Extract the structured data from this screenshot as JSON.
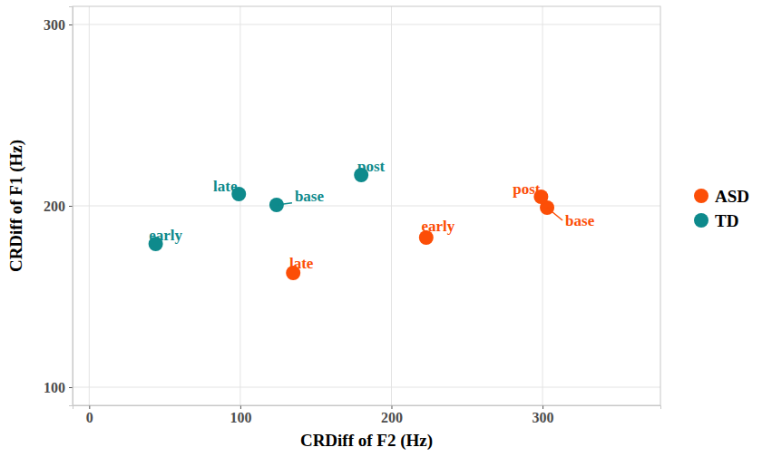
{
  "chart_data": {
    "type": "scatter",
    "x_label": "CRDiff of F2 (Hz)",
    "y_label": "CRDiff of F1 (Hz)",
    "xlim": [
      -11,
      378
    ],
    "ylim": [
      90,
      310
    ],
    "xticks": [
      0,
      100,
      200,
      300
    ],
    "yticks": [
      100,
      200,
      300
    ],
    "grid": true,
    "legend": "right",
    "series": [
      {
        "name": "ASD",
        "color": "#FC4E07",
        "marker": "circle",
        "labels": [
          "base",
          "early",
          "late",
          "post"
        ],
        "x": [
          303,
          223,
          135,
          299
        ],
        "values": [
          199,
          182.5,
          163,
          205
        ]
      },
      {
        "name": "TD",
        "color": "#0E8A8C",
        "marker": "circle",
        "labels": [
          "base",
          "early",
          "late",
          "post"
        ],
        "x": [
          124,
          44,
          99,
          180
        ],
        "values": [
          200.5,
          179,
          206.5,
          217
        ]
      }
    ]
  }
}
